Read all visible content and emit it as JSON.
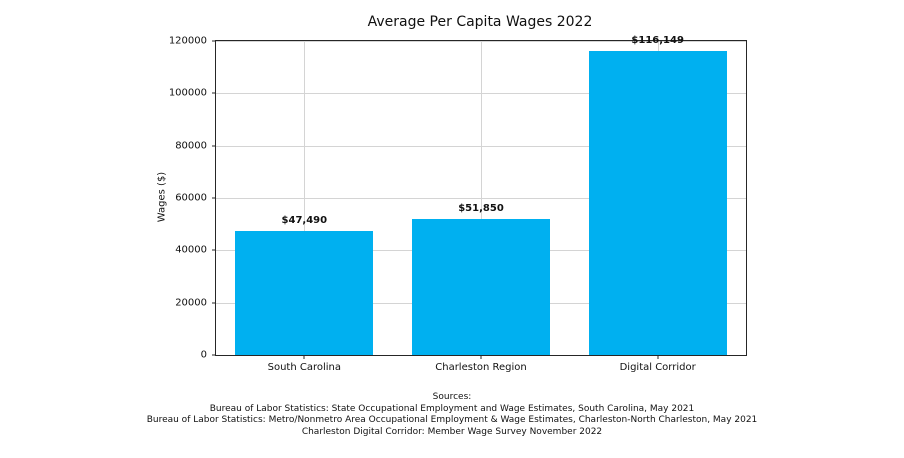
{
  "chart_data": {
    "type": "bar",
    "title": "Average Per Capita Wages 2022",
    "xlabel": "",
    "ylabel": "Wages ($)",
    "categories": [
      "South Carolina",
      "Charleston Region",
      "Digital Corridor"
    ],
    "values": [
      47490,
      51850,
      116149
    ],
    "value_labels": [
      "$47,490",
      "$51,850",
      "$116,149"
    ],
    "ylim": [
      0,
      120000
    ],
    "yticks": [
      0,
      20000,
      40000,
      60000,
      80000,
      100000,
      120000
    ],
    "grid": true,
    "legend": "none",
    "bar_color": "#00b0f0"
  },
  "sources": {
    "heading": "Sources:",
    "lines": [
      "Bureau of Labor Statistics: State Occupational Employment and Wage Estimates, South Carolina, May 2021",
      "Bureau of Labor Statistics: Metro/Nonmetro Area Occupational Employment & Wage Estimates, Charleston-North Charleston, May 2021",
      "Charleston Digital Corridor: Member Wage Survey November 2022"
    ]
  }
}
